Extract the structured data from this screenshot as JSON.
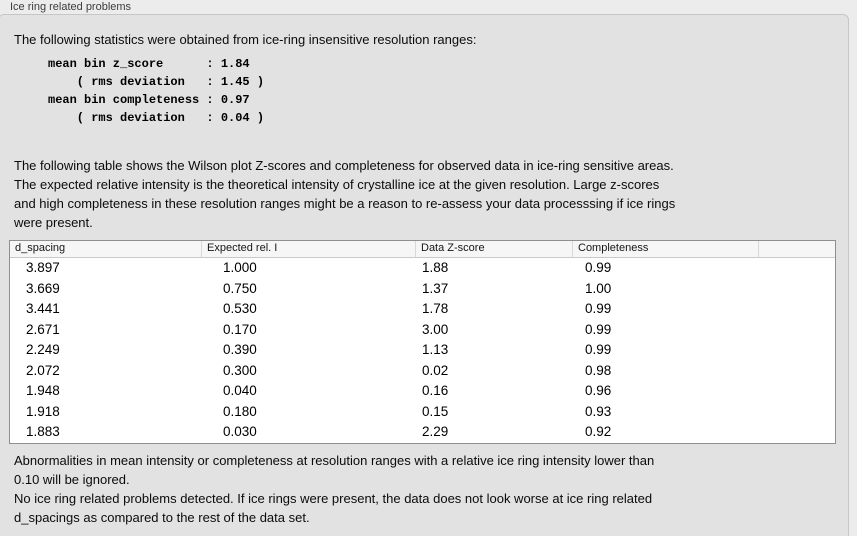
{
  "panel": {
    "title": "Ice ring related problems"
  },
  "intro": {
    "text": "The following statistics were obtained from ice-ring insensitive resolution ranges:"
  },
  "stats": {
    "text": "mean bin z_score      : 1.84\n    ( rms deviation   : 1.45 )\nmean bin completeness : 0.97\n    ( rms deviation   : 0.04 )"
  },
  "description": {
    "text": "The following table shows the Wilson plot Z-scores and completeness for observed data in ice-ring sensitive areas.\nThe expected relative intensity is the theoretical intensity of crystalline ice at the given resolution. Large z-scores\nand high completeness in these resolution ranges might be a reason to re-assess your data processsing if ice rings\nwere present."
  },
  "table": {
    "columns": [
      "d_spacing",
      "Expected rel. I",
      "Data Z-score",
      "Completeness"
    ],
    "rows": [
      [
        "3.897",
        "1.000",
        "1.88",
        "0.99"
      ],
      [
        "3.669",
        "0.750",
        "1.37",
        "1.00"
      ],
      [
        "3.441",
        "0.530",
        "1.78",
        "0.99"
      ],
      [
        "2.671",
        "0.170",
        "3.00",
        "0.99"
      ],
      [
        "2.249",
        "0.390",
        "1.13",
        "0.99"
      ],
      [
        "2.072",
        "0.300",
        "0.02",
        "0.98"
      ],
      [
        "1.948",
        "0.040",
        "0.16",
        "0.96"
      ],
      [
        "1.918",
        "0.180",
        "0.15",
        "0.93"
      ],
      [
        "1.883",
        "0.030",
        "2.29",
        "0.92"
      ]
    ]
  },
  "notes": {
    "ignore_note": "Abnormalities in mean intensity or completeness at resolution ranges with a relative ice ring intensity lower than\n0.10 will be ignored.",
    "conclusion": "No ice ring related problems detected. If ice rings were present, the data does not look worse at ice ring related\nd_spacings as compared to the rest of the data set."
  },
  "colors": {
    "page_bg": "#ececec",
    "box_bg": "#e2e2e2",
    "box_border": "#c6c6c6",
    "table_bg": "#ffffff",
    "table_border": "#8f8f8f",
    "header_bg": "#f6f6f6",
    "text": "#0b0b0b"
  }
}
